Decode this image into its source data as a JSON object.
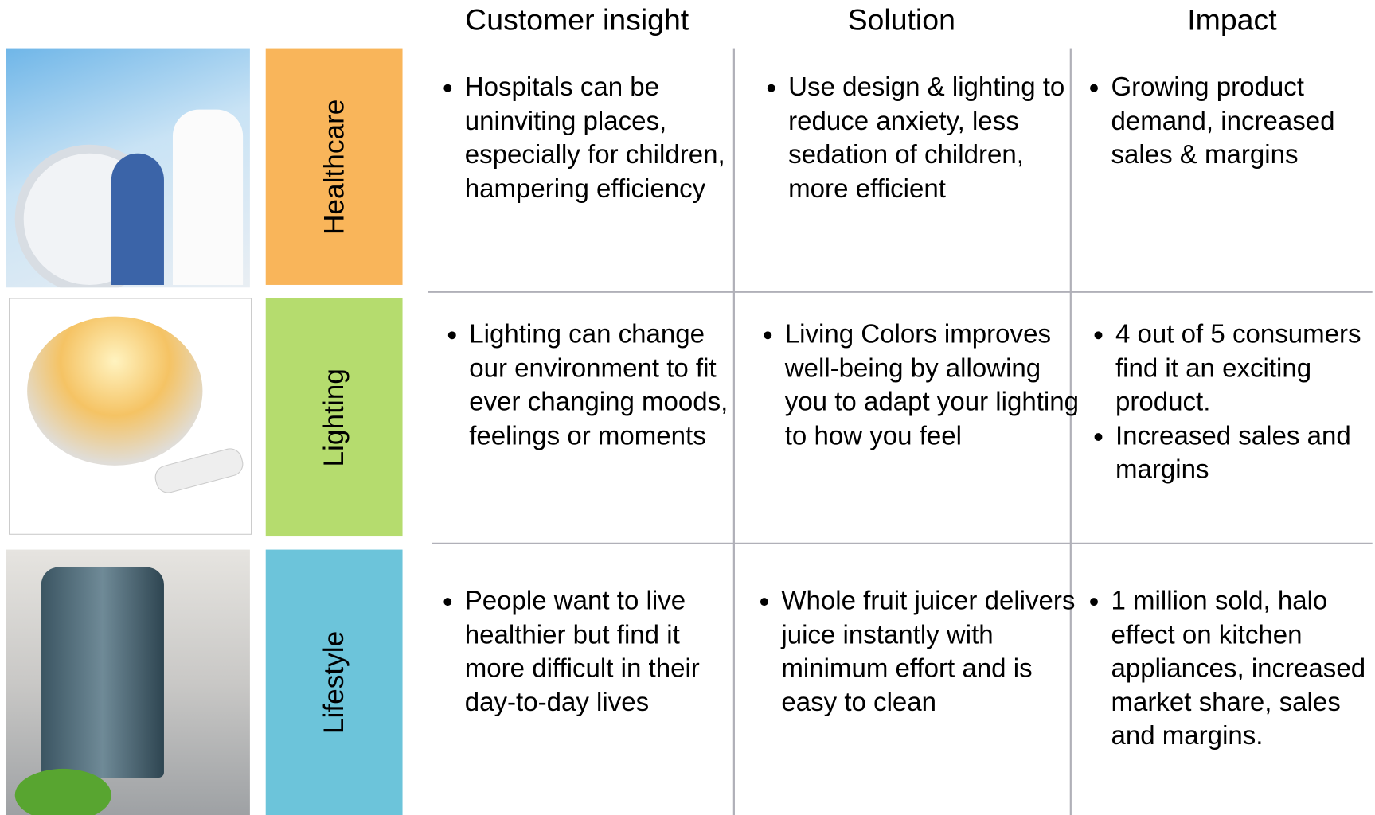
{
  "header": {
    "columns": [
      "Customer insight",
      "Solution",
      "Impact"
    ]
  },
  "rows": [
    {
      "label": "Healthcare",
      "insight": [
        "Hospitals can be uninviting places, especially for children, hampering efficiency"
      ],
      "solution": [
        "Use design & lighting to reduce anxiety, less sedation of children, more efficient"
      ],
      "impact": [
        "Growing product demand, increased sales & margins"
      ]
    },
    {
      "label": "Lighting",
      "insight": [
        "Lighting can change our environment to fit ever changing moods, feelings or moments"
      ],
      "solution": [
        "Living Colors improves well-being by allowing you to adapt your lighting to how you feel"
      ],
      "impact": [
        "4 out of 5 consumers find it an exciting product.",
        "Increased sales and margins"
      ]
    },
    {
      "label": "Lifestyle",
      "insight": [
        "People want to live healthier but find it more difficult in their day-to-day lives"
      ],
      "solution": [
        "Whole fruit juicer delivers juice instantly with minimum effort and is easy to clean"
      ],
      "impact": [
        "1 million sold, halo effect on kitchen appliances, increased market share, sales and margins."
      ]
    }
  ]
}
